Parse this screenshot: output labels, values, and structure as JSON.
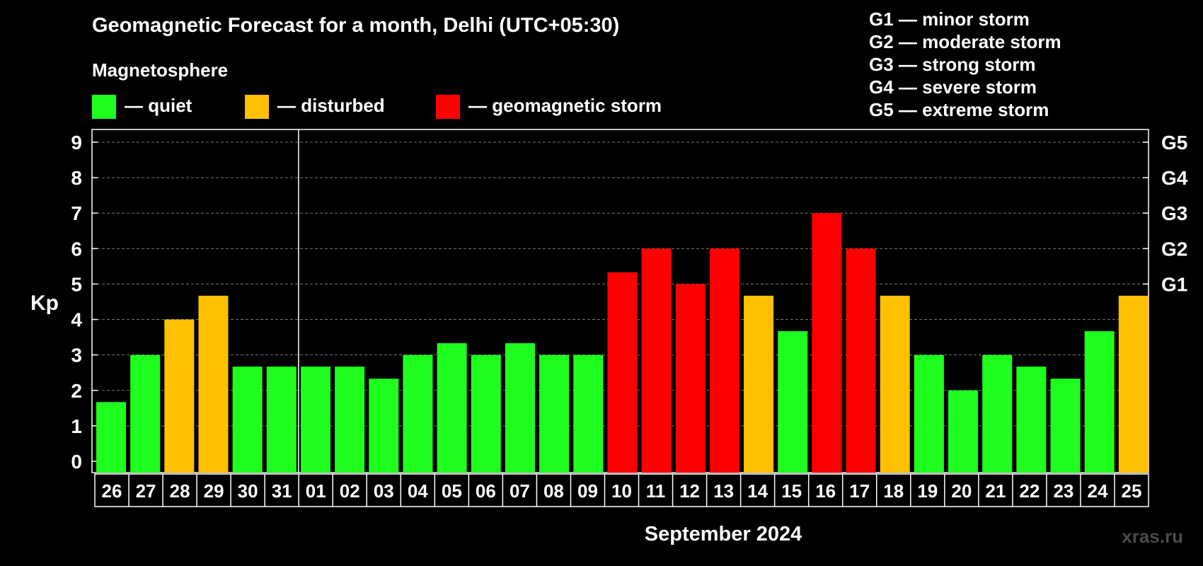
{
  "title": "Geomagnetic Forecast for a month, Delhi (UTC+05:30)",
  "magnetosphere": {
    "heading": "Magnetosphere",
    "legend": [
      {
        "label": "— quiet",
        "color": "#1EFF1E"
      },
      {
        "label": "— disturbed",
        "color": "#FFC000"
      },
      {
        "label": "— geomagnetic storm",
        "color": "#FF0000"
      }
    ]
  },
  "storm_scale": [
    "G1 — minor storm",
    "G2 — moderate storm",
    "G3 — strong storm",
    "G4 — severe storm",
    "G5 — extreme storm"
  ],
  "watermark": "xras.ru",
  "chart_data": {
    "type": "bar",
    "ylabel": "Kp",
    "xlabel": "September 2024",
    "ylim": [
      0,
      9
    ],
    "yticks": [
      "0",
      "1",
      "2",
      "3",
      "4",
      "5",
      "6",
      "7",
      "8",
      "9"
    ],
    "right_axis_labels": [
      {
        "kp": 5,
        "label": "G1"
      },
      {
        "kp": 6,
        "label": "G2"
      },
      {
        "kp": 7,
        "label": "G3"
      },
      {
        "kp": 8,
        "label": "G4"
      },
      {
        "kp": 9,
        "label": "G5"
      }
    ],
    "grid": true,
    "month_separator_after_index": 5,
    "categories": [
      "26",
      "27",
      "28",
      "29",
      "30",
      "31",
      "01",
      "02",
      "03",
      "04",
      "05",
      "06",
      "07",
      "08",
      "09",
      "10",
      "11",
      "12",
      "13",
      "14",
      "15",
      "16",
      "17",
      "18",
      "19",
      "20",
      "21",
      "22",
      "23",
      "24",
      "25"
    ],
    "values": [
      1.67,
      3,
      4,
      4.67,
      2.67,
      2.67,
      2.67,
      2.67,
      2.33,
      3,
      3.33,
      3,
      3.33,
      3,
      3,
      5.33,
      6,
      5,
      6,
      4.67,
      3.67,
      7,
      6,
      4.67,
      3,
      2,
      3,
      2.67,
      2.33,
      3.67,
      4.67
    ],
    "status": [
      "quiet",
      "quiet",
      "disturbed",
      "disturbed",
      "quiet",
      "quiet",
      "quiet",
      "quiet",
      "quiet",
      "quiet",
      "quiet",
      "quiet",
      "quiet",
      "quiet",
      "quiet",
      "storm",
      "storm",
      "storm",
      "storm",
      "disturbed",
      "quiet",
      "storm",
      "storm",
      "disturbed",
      "quiet",
      "quiet",
      "quiet",
      "quiet",
      "quiet",
      "quiet",
      "disturbed"
    ],
    "colors": {
      "quiet": "#1EFF1E",
      "disturbed": "#FFC000",
      "storm": "#FF0000"
    }
  }
}
